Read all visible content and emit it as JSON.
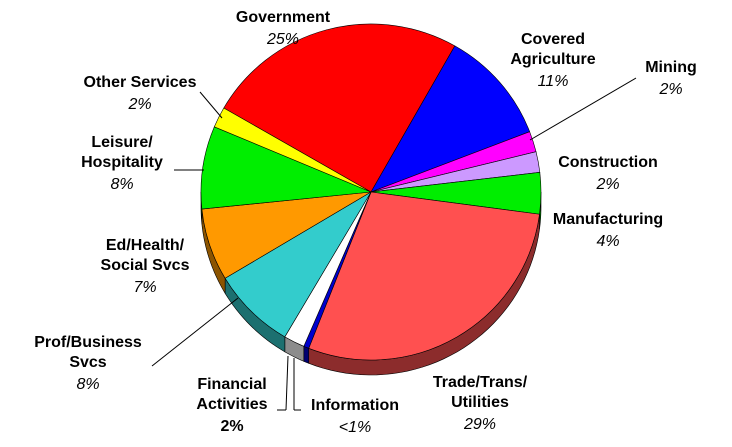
{
  "chart_data": {
    "type": "pie",
    "categories": [
      "Government",
      "Covered\nAgriculture",
      "Mining",
      "Construction",
      "Manufacturing",
      "Trade/Trans/\nUtilities",
      "Information",
      "Financial\nActivities",
      "Prof/Business\nSvcs",
      "Ed/Health/\nSocial Svcs",
      "Leisure/\nHospitality",
      "Other Services"
    ],
    "values": [
      25,
      11,
      2,
      2,
      4,
      29,
      0.5,
      2,
      8,
      7,
      8,
      2
    ],
    "value_labels": [
      "25%",
      "11%",
      "2%",
      "2%",
      "4%",
      "29%",
      "<1%",
      "2%",
      "8%",
      "7%",
      "8%",
      "2%"
    ],
    "colors": [
      "#ff0000",
      "#0000ff",
      "#ff00ff",
      "#cc99ff",
      "#00ee00",
      "#ff5050",
      "#0000cc",
      "#ffffff",
      "#33cccc",
      "#ff9900",
      "#00ee00",
      "#ffff00"
    ]
  }
}
